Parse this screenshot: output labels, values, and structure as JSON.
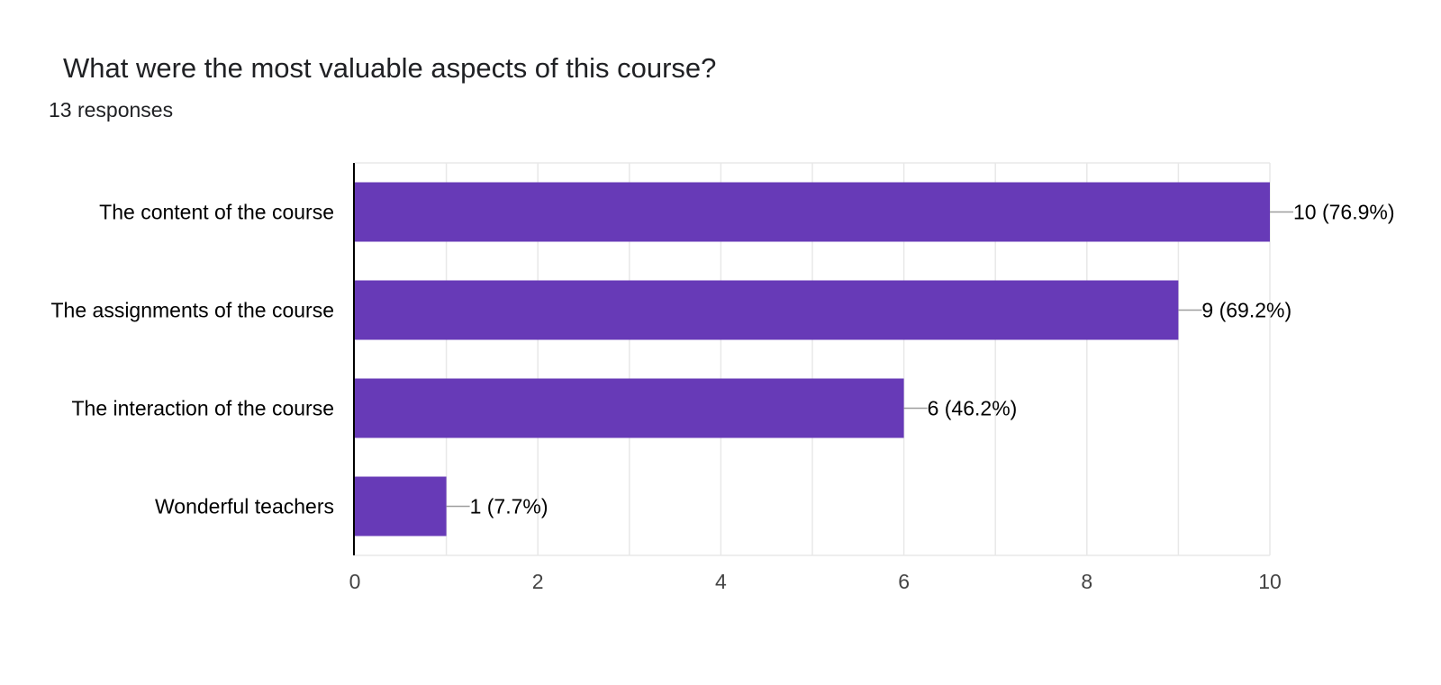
{
  "header": {
    "title": "What were the most valuable aspects of this course?",
    "responses": "13 responses"
  },
  "colors": {
    "bar": "#673ab7",
    "gridline": "#e8e8e8",
    "axis": "#000000",
    "leader": "#9e9e9e",
    "label_text": "#000000",
    "tick_text": "#444444"
  },
  "chart_data": {
    "type": "bar",
    "orientation": "horizontal",
    "title": "What were the most valuable aspects of this course?",
    "subtitle": "13 responses",
    "categories": [
      "The content of the course",
      "The assignments of the course",
      "The interaction of the course",
      "Wonderful teachers"
    ],
    "values": [
      10,
      9,
      6,
      1
    ],
    "data_labels": [
      "10 (76.9%)",
      "9 (69.2%)",
      "6 (46.2%)",
      "1 (7.7%)"
    ],
    "xlim": [
      0,
      10
    ],
    "xticks": [
      0,
      2,
      4,
      6,
      8,
      10
    ],
    "xlabel": "",
    "ylabel": "",
    "grid": true,
    "legend": "none"
  }
}
